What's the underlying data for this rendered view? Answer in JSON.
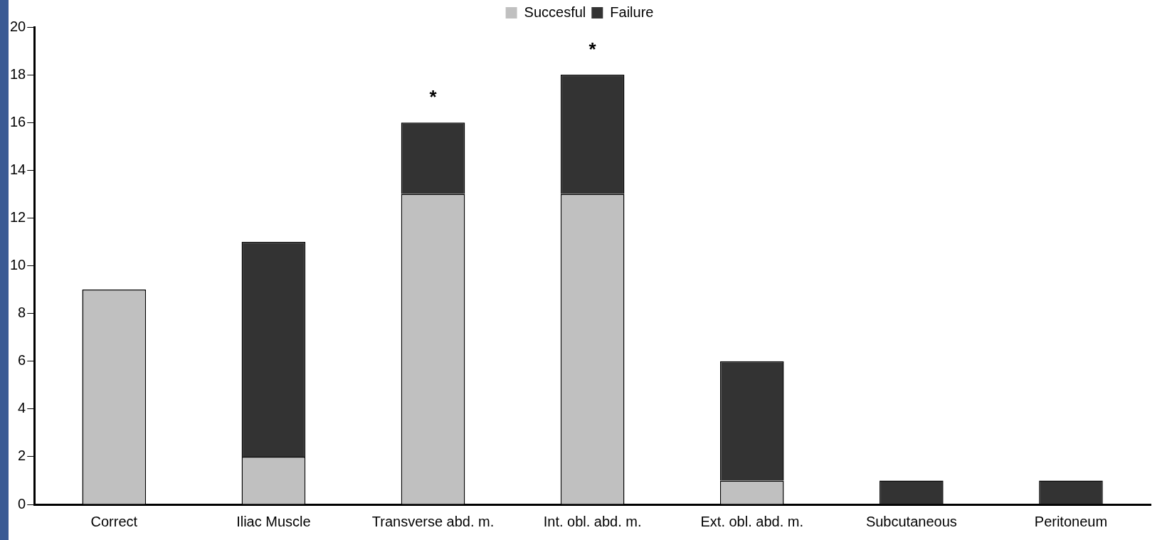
{
  "chart_data": {
    "type": "bar",
    "stacked": true,
    "legend": "top",
    "grid": false,
    "categories": [
      "Correct",
      "Iliac Muscle",
      "Transverse abd. m.",
      "Int. obl. abd. m.",
      "Ext. obl. abd. m.",
      "Subcutaneous",
      "Peritoneum"
    ],
    "series": [
      {
        "name": "Succesful",
        "color": "#c0c0c0",
        "values": [
          9,
          2,
          13,
          13,
          1,
          0,
          0
        ]
      },
      {
        "name": "Failure",
        "color": "#333333",
        "values": [
          0,
          9,
          3,
          5,
          5,
          1,
          1
        ]
      }
    ],
    "ylim": [
      0,
      20
    ],
    "yticks": [
      0,
      2,
      4,
      6,
      8,
      10,
      12,
      14,
      16,
      18,
      20
    ],
    "annotations": [
      {
        "text": "*",
        "x": "Transverse abd. m.",
        "y": 16
      },
      {
        "text": "*",
        "x": "Int. obl. abd. m.",
        "y": 18
      }
    ]
  }
}
